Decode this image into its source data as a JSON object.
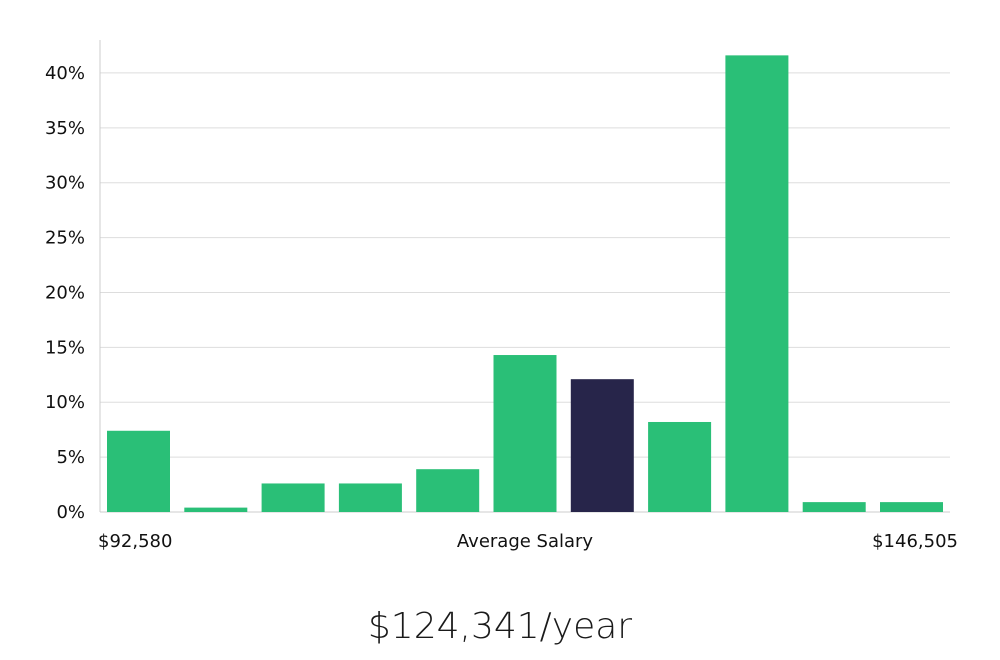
{
  "chart_data": {
    "type": "bar",
    "values": [
      7.4,
      0.4,
      2.6,
      2.6,
      3.9,
      14.3,
      12.1,
      8.2,
      41.6,
      0.9,
      0.9
    ],
    "highlight_index": 6,
    "ylim": [
      0,
      43
    ],
    "y_ticks": [
      0,
      5,
      10,
      15,
      20,
      25,
      30,
      35,
      40
    ],
    "y_tick_labels": [
      "0%",
      "5%",
      "10%",
      "15%",
      "20%",
      "25%",
      "30%",
      "35%",
      "40%"
    ],
    "x_min_label": "$92,580",
    "x_center_label": "Average Salary",
    "x_max_label": "$146,505",
    "grid": true,
    "colors": {
      "bar": "#2ABF77",
      "highlight": "#27254A",
      "grid": "#DDDDDD",
      "axis": "#CCCCCC"
    }
  },
  "salary": {
    "text": "$124,341/year"
  }
}
